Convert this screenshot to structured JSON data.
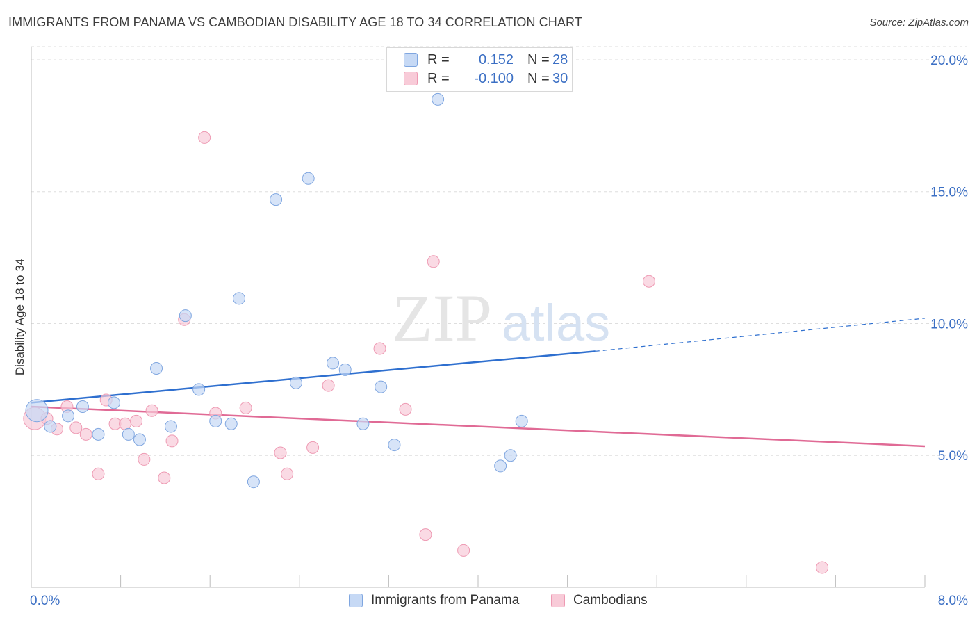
{
  "title": "IMMIGRANTS FROM PANAMA VS CAMBODIAN DISABILITY AGE 18 TO 34 CORRELATION CHART",
  "source": "Source: ZipAtlas.com",
  "watermark": {
    "zip": "ZIP",
    "atlas": "atlas"
  },
  "legend_top": {
    "rows": [
      {
        "r_label": "R =",
        "r_value": "0.152",
        "n_label": "N =",
        "n_value": "28"
      },
      {
        "r_label": "R =",
        "r_value": "-0.100",
        "n_label": "N =",
        "n_value": "30"
      }
    ]
  },
  "legend_bottom": [
    "Immigrants from Panama",
    "Cambodians"
  ],
  "colors": {
    "panama_fill": "#c6d9f5",
    "panama_stroke": "#7fa6e0",
    "panama_line": "#2e6fcf",
    "cambodian_fill": "#f8cbd8",
    "cambodian_stroke": "#ee9ab3",
    "cambodian_line": "#e06a95",
    "tick_label": "#3b6fc4",
    "grid": "#dedede"
  },
  "chart_data": {
    "type": "scatter",
    "xlim": [
      0,
      8
    ],
    "ylim": [
      0,
      20.5
    ],
    "x_tick_labels": [
      "0.0%",
      "8.0%"
    ],
    "y_ticks": [
      5,
      10,
      15,
      20
    ],
    "y_tick_labels": [
      "5.0%",
      "10.0%",
      "15.0%",
      "20.0%"
    ],
    "ylabel": "Disability Age 18 to 34",
    "grid": "horizontal dashed",
    "legend": "top-center",
    "series": [
      {
        "name": "Immigrants from Panama",
        "points": [
          [
            0.05,
            6.7
          ],
          [
            0.17,
            6.1
          ],
          [
            0.33,
            6.5
          ],
          [
            0.46,
            6.85
          ],
          [
            0.6,
            5.8
          ],
          [
            0.74,
            7.0
          ],
          [
            0.87,
            5.8
          ],
          [
            0.97,
            5.6
          ],
          [
            1.12,
            8.3
          ],
          [
            1.25,
            6.1
          ],
          [
            1.38,
            10.3
          ],
          [
            1.5,
            7.5
          ],
          [
            1.65,
            6.3
          ],
          [
            1.79,
            6.2
          ],
          [
            1.86,
            10.95
          ],
          [
            1.99,
            4.0
          ],
          [
            2.19,
            14.7
          ],
          [
            2.37,
            7.75
          ],
          [
            2.48,
            15.5
          ],
          [
            2.7,
            8.5
          ],
          [
            2.81,
            8.25
          ],
          [
            2.97,
            6.2
          ],
          [
            3.13,
            7.6
          ],
          [
            3.25,
            5.4
          ],
          [
            3.64,
            18.5
          ],
          [
            4.2,
            4.6
          ],
          [
            4.29,
            5.0
          ],
          [
            4.39,
            6.3
          ]
        ],
        "trend": {
          "x": [
            0,
            5.05
          ],
          "y": [
            7.0,
            8.95
          ],
          "dashed_x": [
            5.05,
            8.0
          ],
          "dashed_y": [
            8.95,
            10.2
          ]
        }
      },
      {
        "name": "Cambodians",
        "points": [
          [
            0.03,
            6.4
          ],
          [
            0.14,
            6.4
          ],
          [
            0.23,
            6.0
          ],
          [
            0.32,
            6.85
          ],
          [
            0.4,
            6.05
          ],
          [
            0.49,
            5.8
          ],
          [
            0.6,
            4.3
          ],
          [
            0.67,
            7.1
          ],
          [
            0.75,
            6.2
          ],
          [
            0.84,
            6.2
          ],
          [
            0.94,
            6.3
          ],
          [
            1.01,
            4.85
          ],
          [
            1.08,
            6.7
          ],
          [
            1.19,
            4.15
          ],
          [
            1.26,
            5.55
          ],
          [
            1.37,
            10.15
          ],
          [
            1.55,
            17.05
          ],
          [
            1.65,
            6.6
          ],
          [
            1.92,
            6.8
          ],
          [
            2.23,
            5.1
          ],
          [
            2.29,
            4.3
          ],
          [
            2.52,
            5.3
          ],
          [
            2.66,
            7.65
          ],
          [
            3.12,
            9.05
          ],
          [
            3.35,
            6.75
          ],
          [
            3.53,
            2.0
          ],
          [
            3.6,
            12.35
          ],
          [
            3.87,
            1.4
          ],
          [
            5.53,
            11.6
          ],
          [
            7.08,
            0.75
          ]
        ],
        "trend": {
          "x": [
            0,
            8.0
          ],
          "y": [
            6.85,
            5.35
          ]
        }
      }
    ]
  }
}
